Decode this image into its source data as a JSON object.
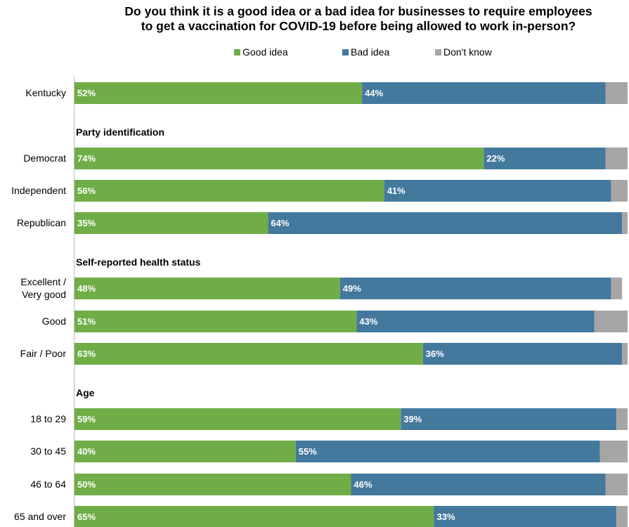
{
  "colors": {
    "good": "#70ad47",
    "bad": "#44799e",
    "dont_know": "#a6a6a6"
  },
  "chart_data": {
    "type": "bar",
    "orientation": "horizontal",
    "stacked": true,
    "title": "Do you think it is a good idea or a bad idea for businesses to require employees to get a vaccination for COVID-19 before being allowed to work in-person?",
    "title_lines": [
      "Do you think it is a good idea or a bad idea for businesses to require employees",
      "to get a vaccination for COVID-19 before being allowed to work in-person?"
    ],
    "xlim": [
      0,
      100
    ],
    "grid": false,
    "legend": "top",
    "series": [
      {
        "name": "Good idea",
        "color": "#70ad47"
      },
      {
        "name": "Bad idea",
        "color": "#44799e"
      },
      {
        "name": "Don't know",
        "color": "#a6a6a6"
      }
    ],
    "groups": [
      {
        "heading": "",
        "rows": [
          {
            "label": [
              "Kentucky"
            ],
            "values": [
              52,
              44,
              4
            ]
          }
        ]
      },
      {
        "heading": "Party identification",
        "rows": [
          {
            "label": [
              "Democrat"
            ],
            "values": [
              74,
              22,
              4
            ]
          },
          {
            "label": [
              "Independent"
            ],
            "values": [
              56,
              41,
              3
            ]
          },
          {
            "label": [
              "Republican"
            ],
            "values": [
              35,
              64,
              1
            ]
          }
        ]
      },
      {
        "heading": "Self-reported health status",
        "rows": [
          {
            "label": [
              "Excellent /",
              "Very good"
            ],
            "values": [
              48,
              49,
              2
            ]
          },
          {
            "label": [
              "Good"
            ],
            "values": [
              51,
              43,
              6
            ]
          },
          {
            "label": [
              "Fair / Poor"
            ],
            "values": [
              63,
              36,
              1
            ]
          }
        ]
      },
      {
        "heading": "Age",
        "rows": [
          {
            "label": [
              "18 to 29"
            ],
            "values": [
              59,
              39,
              2
            ]
          },
          {
            "label": [
              "30 to 45"
            ],
            "values": [
              40,
              55,
              5
            ]
          },
          {
            "label": [
              "46 to 64"
            ],
            "values": [
              50,
              46,
              4
            ]
          },
          {
            "label": [
              "65 and over"
            ],
            "values": [
              65,
              33,
              2
            ]
          }
        ]
      }
    ]
  }
}
